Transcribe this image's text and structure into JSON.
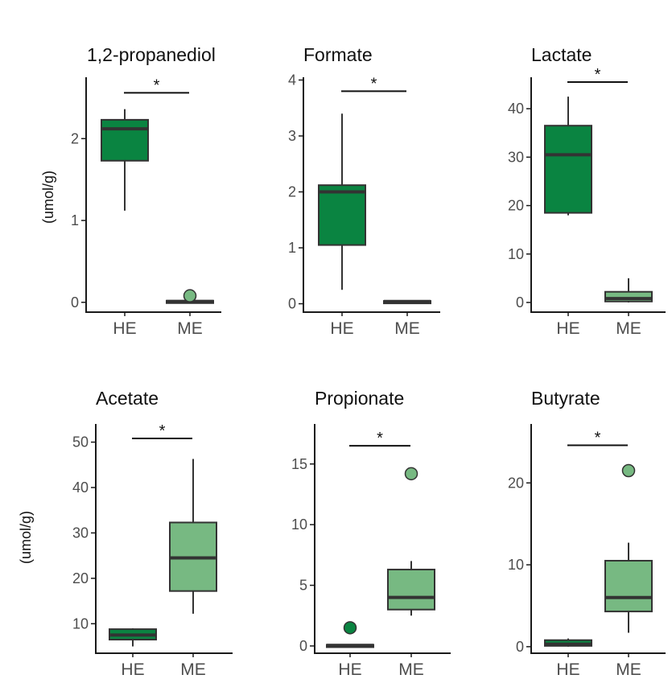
{
  "colors": {
    "HE": "#0a8441",
    "ME": "#77b982",
    "line": "#333333",
    "axis": "#1a1a1a"
  },
  "ylabel": "(umol/g)",
  "chart_data": [
    {
      "type": "box",
      "title": "1,2-propanediol",
      "categories": [
        "HE",
        "ME"
      ],
      "ylim": [
        -0.12,
        2.75
      ],
      "yticks": [
        0,
        1,
        2
      ],
      "ytick_labels": [
        "0",
        "1",
        "2"
      ],
      "show_ylabel": true,
      "boxes": [
        {
          "group": "HE",
          "whisker_low": 1.12,
          "q1": 1.73,
          "median": 2.12,
          "q3": 2.23,
          "whisker_high": 2.36,
          "outliers": []
        },
        {
          "group": "ME",
          "whisker_low": 0.0,
          "q1": 0.0,
          "median": 0.01,
          "q3": 0.02,
          "whisker_high": 0.02,
          "outliers": [
            0.08
          ]
        }
      ],
      "significance": {
        "from": "HE",
        "to": "ME",
        "y": 2.56,
        "label": "*"
      }
    },
    {
      "type": "box",
      "title": "Formate",
      "categories": [
        "HE",
        "ME"
      ],
      "ylim": [
        -0.15,
        4.05
      ],
      "yticks": [
        0,
        1,
        2,
        3,
        4
      ],
      "ytick_labels": [
        "0",
        "1",
        "2",
        "3",
        "4"
      ],
      "show_ylabel": false,
      "boxes": [
        {
          "group": "HE",
          "whisker_low": 0.25,
          "q1": 1.05,
          "median": 2.0,
          "q3": 2.12,
          "whisker_high": 3.4,
          "outliers": []
        },
        {
          "group": "ME",
          "whisker_low": 0.0,
          "q1": 0.02,
          "median": 0.04,
          "q3": 0.05,
          "whisker_high": 0.06,
          "outliers": []
        }
      ],
      "significance": {
        "from": "HE",
        "to": "ME",
        "y": 3.8,
        "label": "*"
      }
    },
    {
      "type": "box",
      "title": "Lactate",
      "categories": [
        "HE",
        "ME"
      ],
      "ylim": [
        -2,
        46.5
      ],
      "yticks": [
        0,
        10,
        20,
        30,
        40
      ],
      "ytick_labels": [
        "0",
        "10",
        "20",
        "30",
        "40"
      ],
      "show_ylabel": false,
      "boxes": [
        {
          "group": "HE",
          "whisker_low": 18.0,
          "q1": 18.5,
          "median": 30.5,
          "q3": 36.5,
          "whisker_high": 42.5,
          "outliers": []
        },
        {
          "group": "ME",
          "whisker_low": 0.0,
          "q1": 0.2,
          "median": 0.8,
          "q3": 2.2,
          "whisker_high": 5.0,
          "outliers": []
        }
      ],
      "significance": {
        "from": "HE",
        "to": "ME",
        "y": 45.5,
        "label": "*"
      }
    },
    {
      "type": "box",
      "title": "Acetate",
      "categories": [
        "HE",
        "ME"
      ],
      "ylim": [
        3.5,
        54
      ],
      "yticks": [
        10,
        20,
        30,
        40,
        50
      ],
      "ytick_labels": [
        "10",
        "20",
        "30",
        "40",
        "50"
      ],
      "show_ylabel": true,
      "boxes": [
        {
          "group": "HE",
          "whisker_low": 5.0,
          "q1": 6.5,
          "median": 7.5,
          "q3": 8.8,
          "whisker_high": 9.0,
          "outliers": []
        },
        {
          "group": "ME",
          "whisker_low": 12.2,
          "q1": 17.2,
          "median": 24.5,
          "q3": 32.3,
          "whisker_high": 46.3,
          "outliers": []
        }
      ],
      "significance": {
        "from": "HE",
        "to": "ME",
        "y": 50.8,
        "label": "*"
      }
    },
    {
      "type": "box",
      "title": "Propionate",
      "categories": [
        "HE",
        "ME"
      ],
      "ylim": [
        -0.6,
        18.3
      ],
      "yticks": [
        0,
        5,
        10,
        15
      ],
      "ytick_labels": [
        "0",
        "5",
        "10",
        "15"
      ],
      "show_ylabel": false,
      "boxes": [
        {
          "group": "HE",
          "whisker_low": 0.0,
          "q1": 0.0,
          "median": 0.05,
          "q3": 0.1,
          "whisker_high": 0.15,
          "outliers": [
            1.5
          ]
        },
        {
          "group": "ME",
          "whisker_low": 2.5,
          "q1": 3.0,
          "median": 4.0,
          "q3": 6.3,
          "whisker_high": 7.0,
          "outliers": [
            14.2
          ]
        }
      ],
      "significance": {
        "from": "HE",
        "to": "ME",
        "y": 16.5,
        "label": "*"
      }
    },
    {
      "type": "box",
      "title": "Butyrate",
      "categories": [
        "HE",
        "ME"
      ],
      "ylim": [
        -0.8,
        27.2
      ],
      "yticks": [
        0,
        10,
        20
      ],
      "ytick_labels": [
        "0",
        "10",
        "20"
      ],
      "show_ylabel": false,
      "boxes": [
        {
          "group": "HE",
          "whisker_low": 0.0,
          "q1": 0.1,
          "median": 0.3,
          "q3": 0.8,
          "whisker_high": 1.0,
          "outliers": []
        },
        {
          "group": "ME",
          "whisker_low": 1.7,
          "q1": 4.3,
          "median": 6.0,
          "q3": 10.5,
          "whisker_high": 12.7,
          "outliers": [
            21.5
          ]
        }
      ],
      "significance": {
        "from": "HE",
        "to": "ME",
        "y": 24.6,
        "label": "*"
      }
    }
  ]
}
